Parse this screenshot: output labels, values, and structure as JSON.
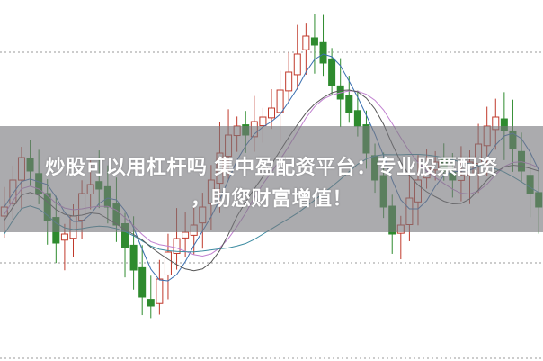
{
  "headline": {
    "line1": "炒股可以用杠杆吗 集中盈配资平台：专业股票配资",
    "line2": "，助您财富增值！"
  },
  "colors": {
    "up_candle": "#c0392b",
    "down_candle": "#2e8b2e",
    "ma_short": "#3a6fb0",
    "ma_mid": "#c080d0",
    "ma_long": "#3a8aa0",
    "overlay_band": "#78787d"
  }
}
